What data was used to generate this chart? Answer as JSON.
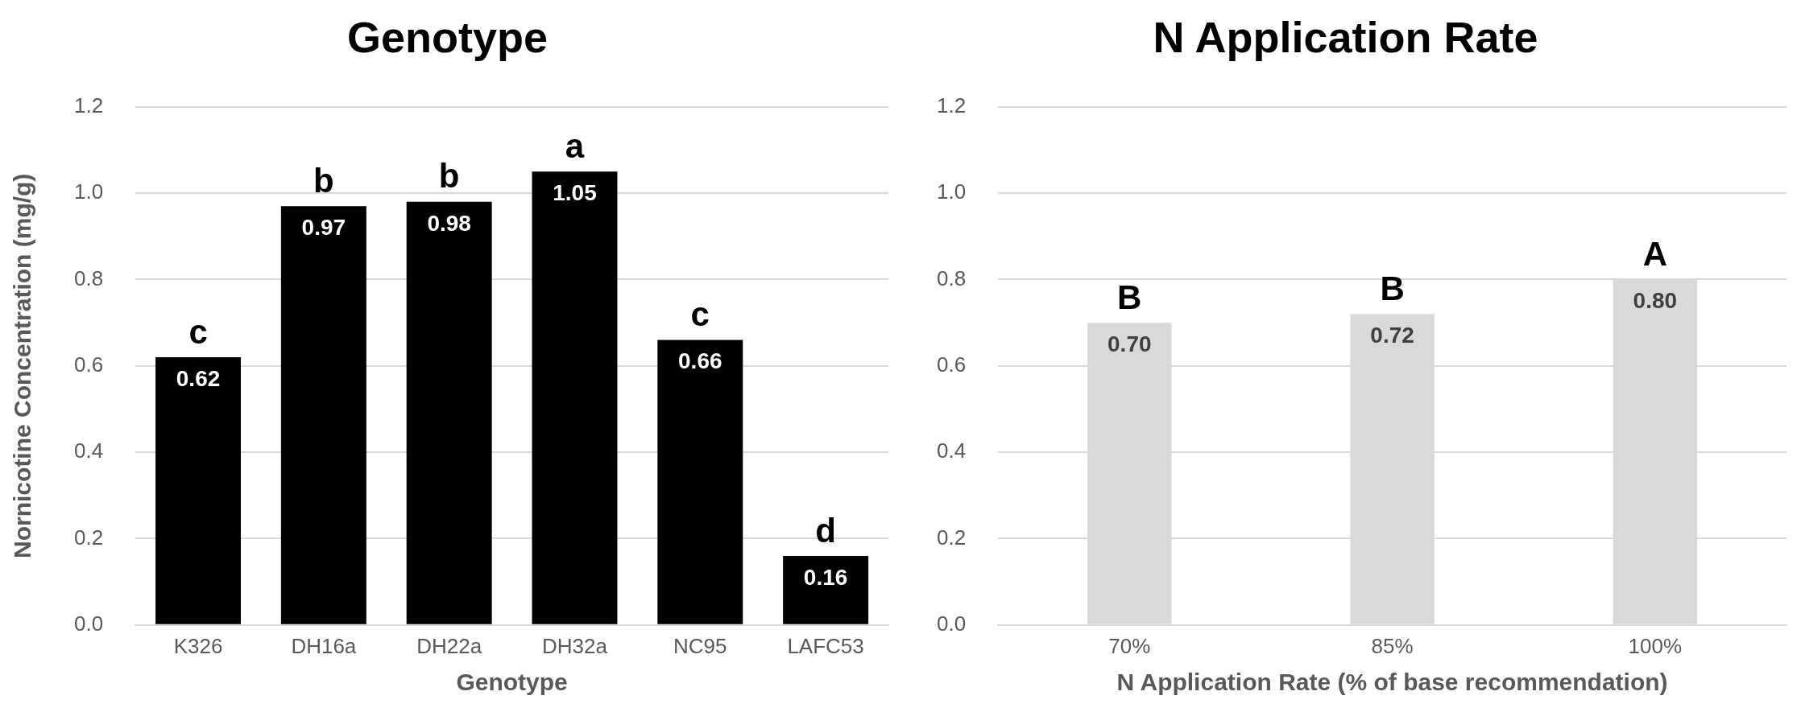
{
  "chart_data": [
    {
      "type": "bar",
      "title": "Genotype",
      "xlabel": "Genotype",
      "ylabel": "Nornicotine Concentration (mg/g)",
      "categories": [
        "K326",
        "DH16a",
        "DH22a",
        "DH32a",
        "NC95",
        "LAFC53"
      ],
      "series": [
        {
          "color": "#000000",
          "values": [
            0.62,
            0.97,
            0.98,
            1.05,
            0.66,
            0.16
          ],
          "value_labels": [
            "0.62",
            "0.97",
            "0.98",
            "1.05",
            "0.66",
            "0.16"
          ]
        }
      ],
      "ylim": [
        0,
        1.2
      ],
      "yticks": [
        {
          "value": 0,
          "label": "0.0"
        },
        {
          "value": 0.2,
          "label": "0.2"
        },
        {
          "value": 0.4,
          "label": "0.4"
        },
        {
          "value": 0.6,
          "label": "0.6"
        },
        {
          "value": 0.8,
          "label": "0.8"
        },
        {
          "value": 1,
          "label": "1.0"
        },
        {
          "value": 1.2,
          "label": "1.2"
        }
      ],
      "grid": "y",
      "legend": false,
      "annotations": [
        {
          "text": "c",
          "x": "K326",
          "y": 0.62
        },
        {
          "text": "b",
          "x": "DH16a",
          "y": 0.97
        },
        {
          "text": "b",
          "x": "DH22a",
          "y": 0.98
        },
        {
          "text": "a",
          "x": "DH32a",
          "y": 1.05
        },
        {
          "text": "c",
          "x": "NC95",
          "y": 0.66
        },
        {
          "text": "d",
          "x": "LAFC53",
          "y": 0.16
        }
      ]
    },
    {
      "type": "bar",
      "title": "N Application Rate",
      "xlabel": "N Application Rate (% of base recommendation)",
      "categories": [
        "70%",
        "85%",
        "100%"
      ],
      "series": [
        {
          "color": "#d9d9d9",
          "values": [
            0.7,
            0.72,
            0.8
          ],
          "value_labels": [
            "0.70",
            "0.72",
            "0.80"
          ]
        }
      ],
      "ylim": [
        0,
        1.2
      ],
      "yticks": [
        {
          "value": 0,
          "label": "0.0"
        },
        {
          "value": 0.2,
          "label": "0.2"
        },
        {
          "value": 0.4,
          "label": "0.4"
        },
        {
          "value": 0.6,
          "label": "0.6"
        },
        {
          "value": 0.8,
          "label": "0.8"
        },
        {
          "value": 1,
          "label": "1.0"
        },
        {
          "value": 1.2,
          "label": "1.2"
        }
      ],
      "grid": "y",
      "legend": false,
      "annotations": [
        {
          "text": "B",
          "x": "70%",
          "y": 0.7
        },
        {
          "text": "B",
          "x": "85%",
          "y": 0.72
        },
        {
          "text": "A",
          "x": "100%",
          "y": 0.8
        }
      ]
    }
  ]
}
